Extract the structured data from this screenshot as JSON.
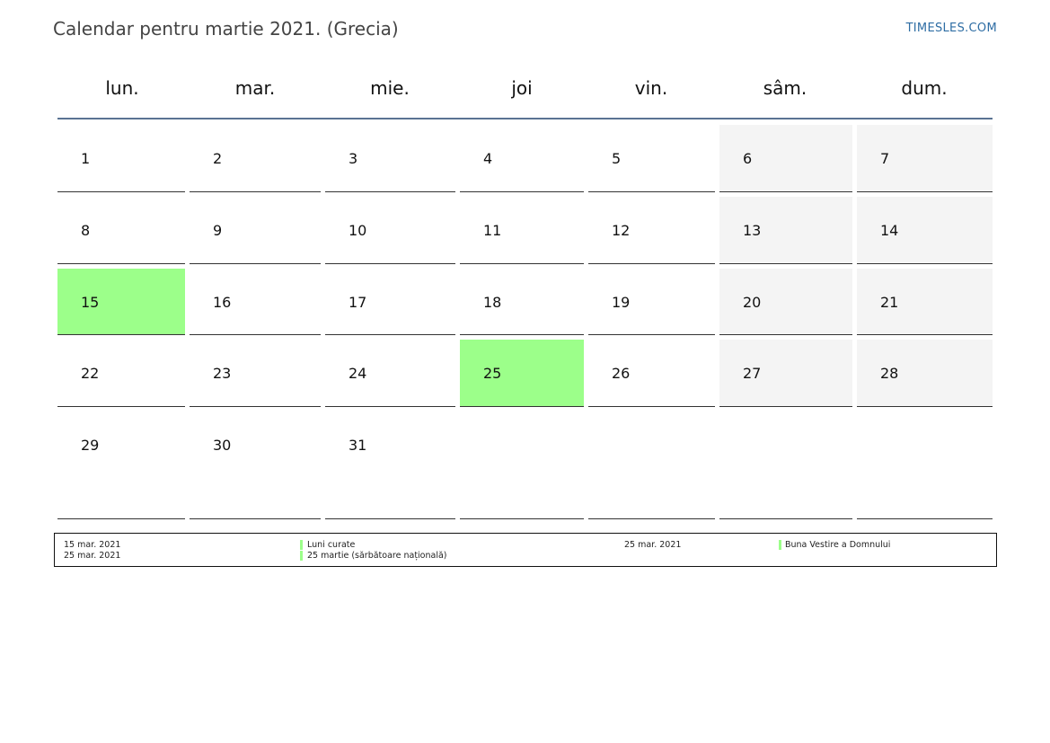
{
  "title": "Calendar pentru martie 2021. (Grecia)",
  "brand": "TIMESLES.COM",
  "colors": {
    "holiday": "#9cff8a",
    "weekend": "#f4f4f4",
    "header_rule": "#5a7393",
    "brand": "#2e6da4"
  },
  "weekdays": [
    "lun.",
    "mar.",
    "mie.",
    "joi",
    "vin.",
    "sâm.",
    "dum."
  ],
  "weeks": [
    [
      "1",
      "2",
      "3",
      "4",
      "5",
      "6",
      "7"
    ],
    [
      "8",
      "9",
      "10",
      "11",
      "12",
      "13",
      "14"
    ],
    [
      "15",
      "16",
      "17",
      "18",
      "19",
      "20",
      "21"
    ],
    [
      "22",
      "23",
      "24",
      "25",
      "26",
      "27",
      "28"
    ],
    [
      "29",
      "30",
      "31",
      "",
      "",
      "",
      ""
    ]
  ],
  "holidays": [
    "15",
    "25"
  ],
  "legend": [
    {
      "date": "15 mar. 2021",
      "name": "Luni curate"
    },
    {
      "date": "25 mar. 2021",
      "name": "Buna Vestire a Domnului"
    },
    {
      "date": "25 mar. 2021",
      "name": "25 martie (sărbătoare națională)"
    }
  ]
}
